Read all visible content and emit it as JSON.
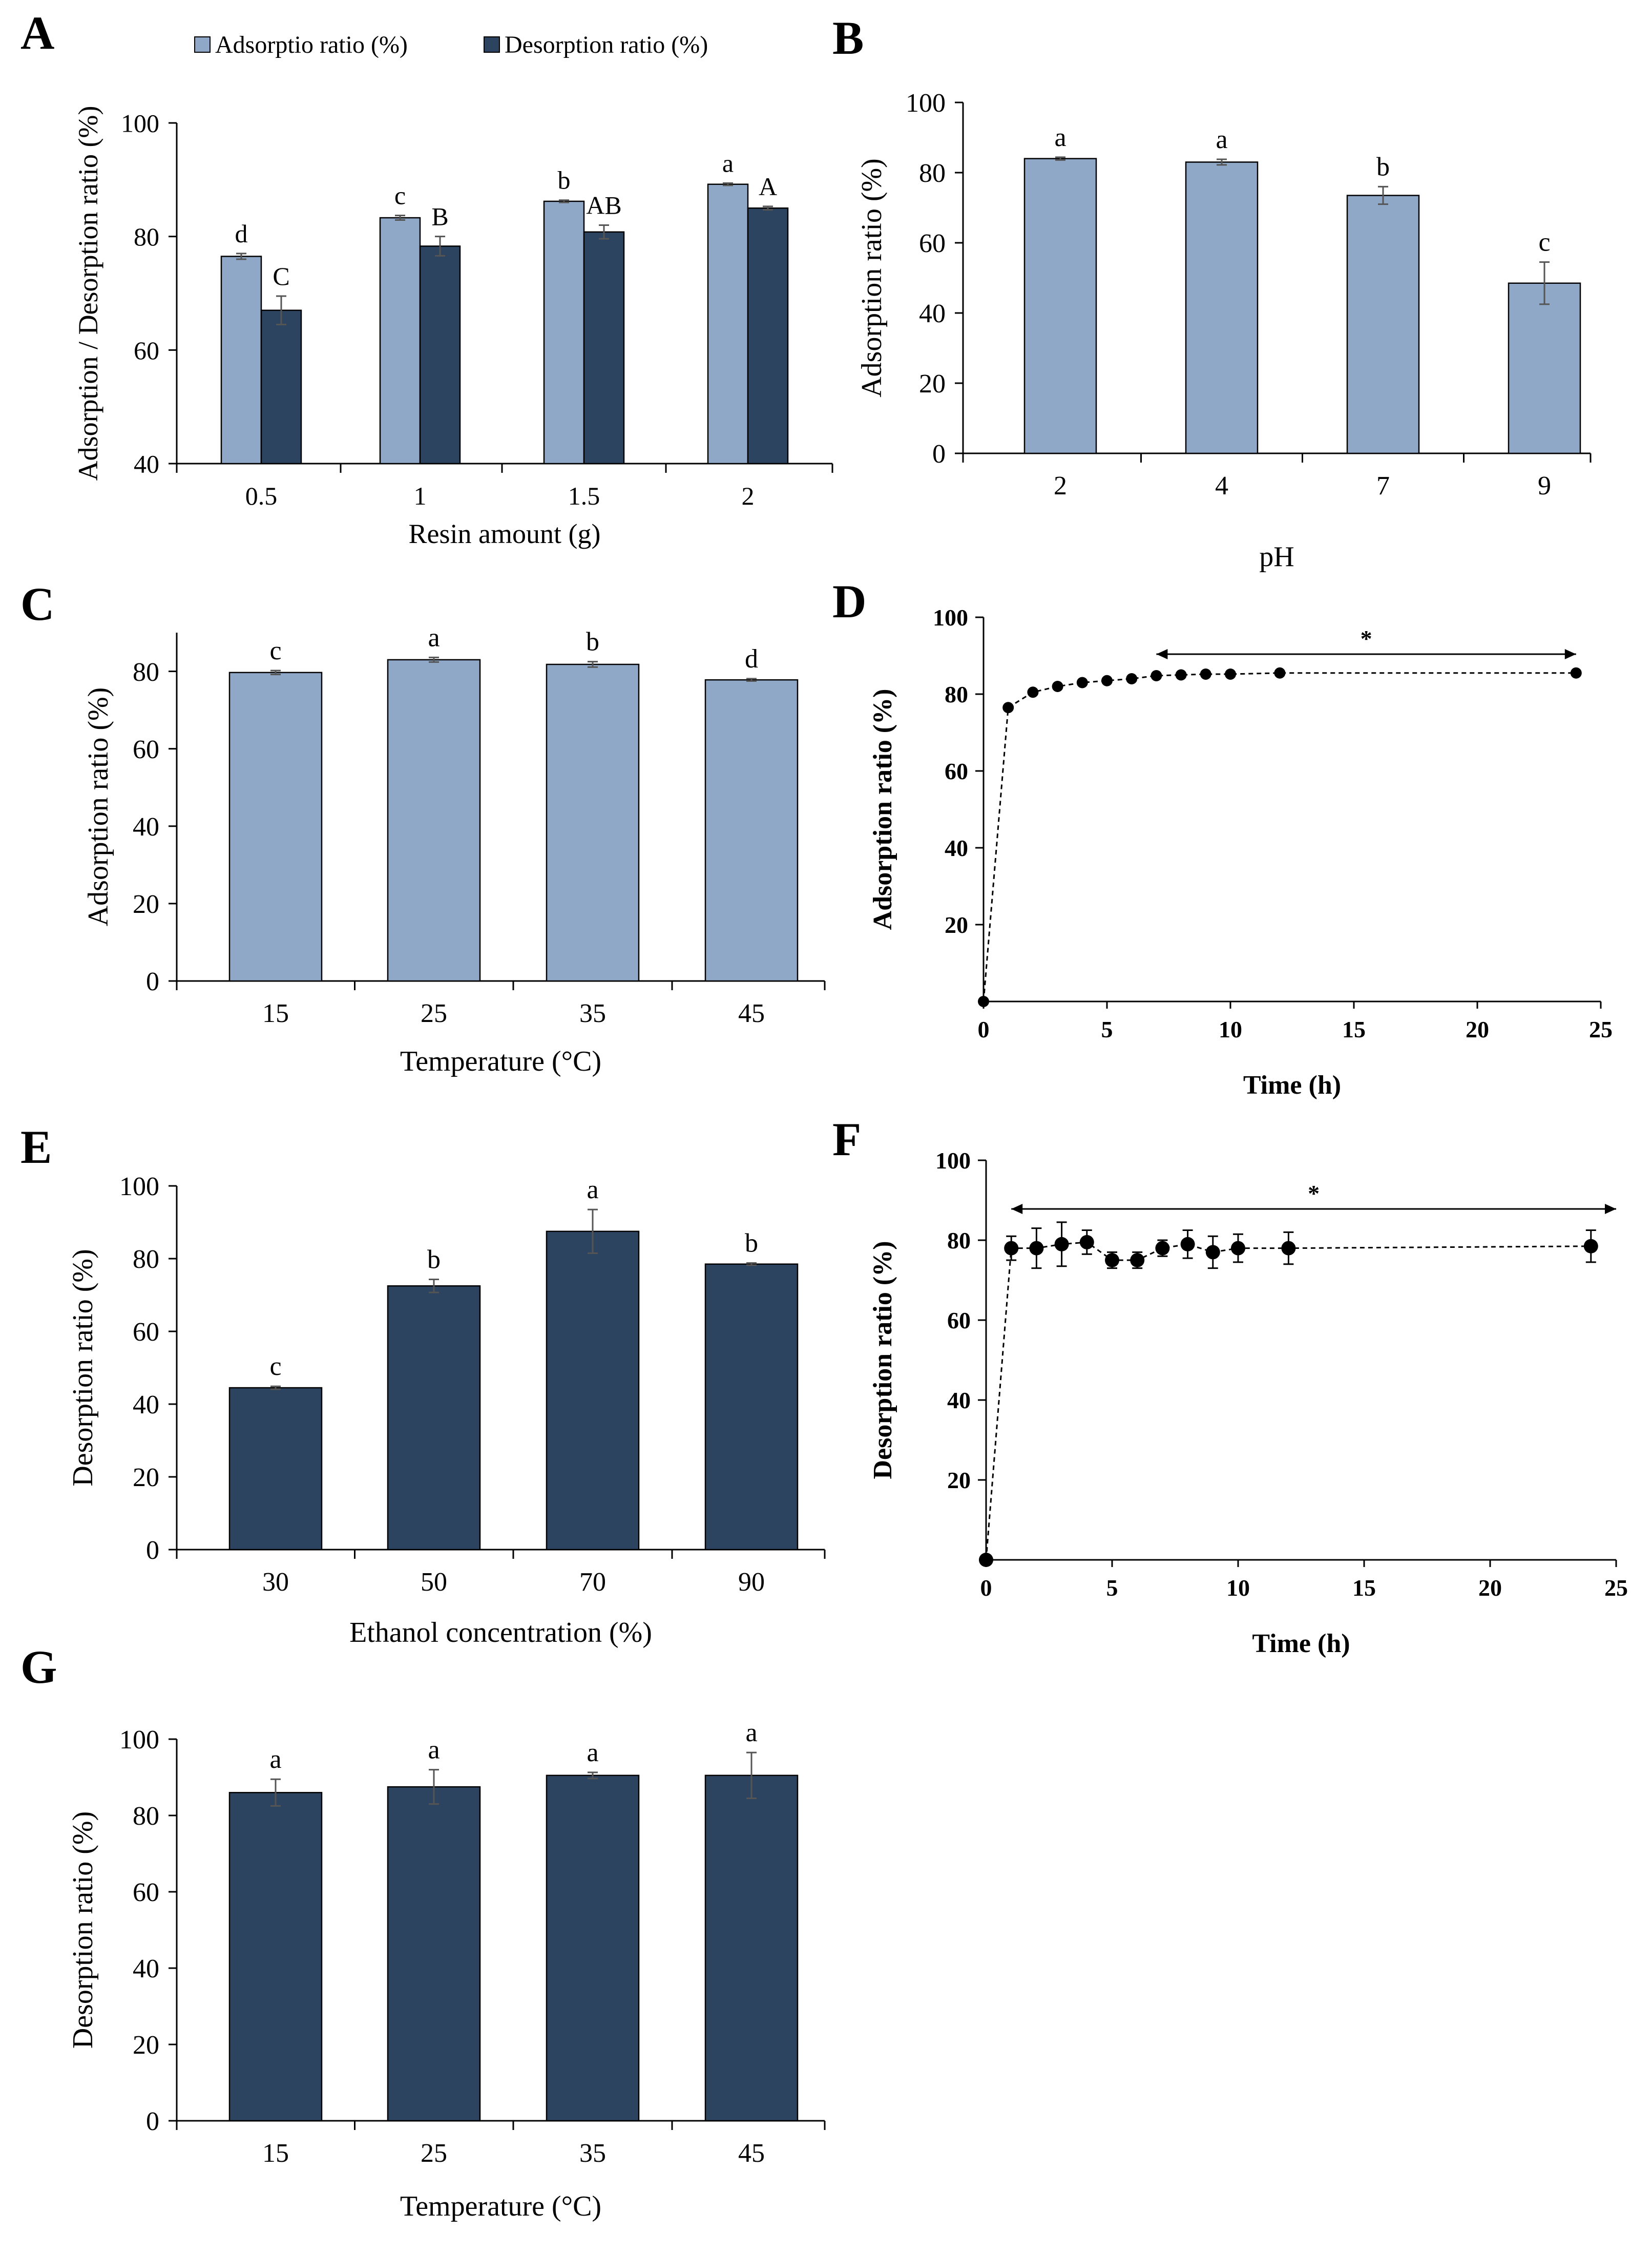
{
  "colors": {
    "light_bar": "#8fa8c8",
    "dark_bar": "#2c4460",
    "axis": "#000000",
    "error_bar": "#555555",
    "marker": "#000000"
  },
  "chart_data": [
    {
      "panel": "A",
      "type": "bar",
      "categories": [
        "0.5",
        "1",
        "1.5",
        "2"
      ],
      "series": [
        {
          "name": "Adsorptio ratio (%)",
          "values": [
            76.5,
            83.3,
            86.2,
            89.2
          ],
          "errors": [
            0.5,
            0.4,
            0.2,
            0.2
          ],
          "letters": [
            "d",
            "c",
            "b",
            "a"
          ],
          "color": "light"
        },
        {
          "name": "Desorption ratio (%)",
          "values": [
            67.0,
            78.3,
            80.8,
            85.0
          ],
          "errors": [
            2.5,
            1.7,
            1.2,
            0.3
          ],
          "letters": [
            "C",
            "B",
            "AB",
            "A"
          ],
          "color": "dark"
        }
      ],
      "xlabel": "Resin amount (g)",
      "ylabel": "Adsorption / Desorption ratio (%)",
      "ylim": [
        40,
        100
      ],
      "yticks": [
        "40",
        "60",
        "80",
        "100"
      ],
      "legend": [
        "Adsorptio ratio (%)",
        "Desorption ratio (%)"
      ],
      "legend_position": "top"
    },
    {
      "panel": "B",
      "type": "bar",
      "categories": [
        "2",
        "4",
        "7",
        "9"
      ],
      "series": [
        {
          "name": "Adsorption ratio",
          "values": [
            84.0,
            83.0,
            73.5,
            48.5
          ],
          "errors": [
            0.4,
            0.8,
            2.5,
            6.0
          ],
          "letters": [
            "a",
            "a",
            "b",
            "c"
          ],
          "color": "light"
        }
      ],
      "xlabel": "pH",
      "ylabel": "Adsorption ratio (%)",
      "ylim": [
        0,
        100
      ],
      "yticks": [
        "0",
        "20",
        "40",
        "60",
        "80",
        "100"
      ]
    },
    {
      "panel": "C",
      "type": "bar",
      "categories": [
        "15",
        "25",
        "35",
        "45"
      ],
      "series": [
        {
          "name": "Adsorption ratio",
          "values": [
            79.7,
            83.0,
            81.8,
            77.8
          ],
          "errors": [
            0.5,
            0.6,
            0.7,
            0.3
          ],
          "letters": [
            "c",
            "a",
            "b",
            "d"
          ],
          "color": "light"
        }
      ],
      "xlabel": "Temperature (°C)",
      "ylabel": "Adsorption ratio (%)",
      "ylim": [
        0,
        90
      ],
      "yticks": [
        "0",
        "20",
        "40",
        "60",
        "80"
      ]
    },
    {
      "panel": "D",
      "type": "line",
      "x": [
        0,
        1,
        2,
        3,
        4,
        5,
        6,
        7,
        8,
        9,
        10,
        12,
        24
      ],
      "y": [
        0,
        76.5,
        80.5,
        82.0,
        83.0,
        83.5,
        84.0,
        84.8,
        85.0,
        85.2,
        85.2,
        85.5,
        85.5
      ],
      "xlabel": "Time (h)",
      "ylabel": "Adsorption ratio (%)",
      "xlim": [
        0,
        25
      ],
      "ylim": [
        0,
        100
      ],
      "xticks": [
        "0",
        "5",
        "10",
        "15",
        "20",
        "25"
      ],
      "yticks": [
        "20",
        "40",
        "60",
        "80",
        "100"
      ],
      "annotation": {
        "text": "*",
        "x_from": 7,
        "x_to": 24
      }
    },
    {
      "panel": "E",
      "type": "bar",
      "categories": [
        "30",
        "50",
        "70",
        "90"
      ],
      "series": [
        {
          "name": "Desorption ratio",
          "values": [
            44.5,
            72.5,
            87.5,
            78.5
          ],
          "errors": [
            0.4,
            1.8,
            6.0,
            0.3
          ],
          "letters": [
            "c",
            "b",
            "a",
            "b"
          ],
          "color": "dark"
        }
      ],
      "xlabel": "Ethanol concentration (%)",
      "ylabel": "Desorption ratio (%)",
      "ylim": [
        0,
        100
      ],
      "yticks": [
        "0",
        "20",
        "40",
        "60",
        "80",
        "100"
      ]
    },
    {
      "panel": "F",
      "type": "line",
      "x": [
        0,
        1,
        2,
        3,
        4,
        5,
        6,
        7,
        8,
        9,
        10,
        12,
        24
      ],
      "y": [
        0,
        78.0,
        78.0,
        79.0,
        79.5,
        75.0,
        75.0,
        78.0,
        79.0,
        77.0,
        78.0,
        78.0,
        78.5
      ],
      "errors": [
        0,
        3.0,
        5.0,
        5.5,
        3.0,
        2.0,
        2.0,
        2.0,
        3.5,
        4.0,
        3.5,
        4.0,
        4.0
      ],
      "xlabel": "Time (h)",
      "ylabel": "Desorption ratio (%)",
      "xlim": [
        0,
        25
      ],
      "ylim": [
        0,
        100
      ],
      "xticks": [
        "0",
        "5",
        "10",
        "15",
        "20",
        "25"
      ],
      "yticks": [
        "20",
        "40",
        "60",
        "80",
        "100"
      ],
      "annotation": {
        "text": "*",
        "x_from": 1,
        "x_to": 25
      }
    },
    {
      "panel": "G",
      "type": "bar",
      "categories": [
        "15",
        "25",
        "35",
        "45"
      ],
      "series": [
        {
          "name": "Desorption ratio",
          "values": [
            86.0,
            87.5,
            90.5,
            90.5
          ],
          "errors": [
            3.5,
            4.5,
            0.8,
            6.0
          ],
          "letters": [
            "a",
            "a",
            "a",
            "a"
          ],
          "color": "dark"
        }
      ],
      "xlabel": "Temperature (°C)",
      "ylabel": "Desorption ratio (%)",
      "ylim": [
        0,
        100
      ],
      "yticks": [
        "0",
        "20",
        "40",
        "60",
        "80",
        "100"
      ]
    }
  ]
}
